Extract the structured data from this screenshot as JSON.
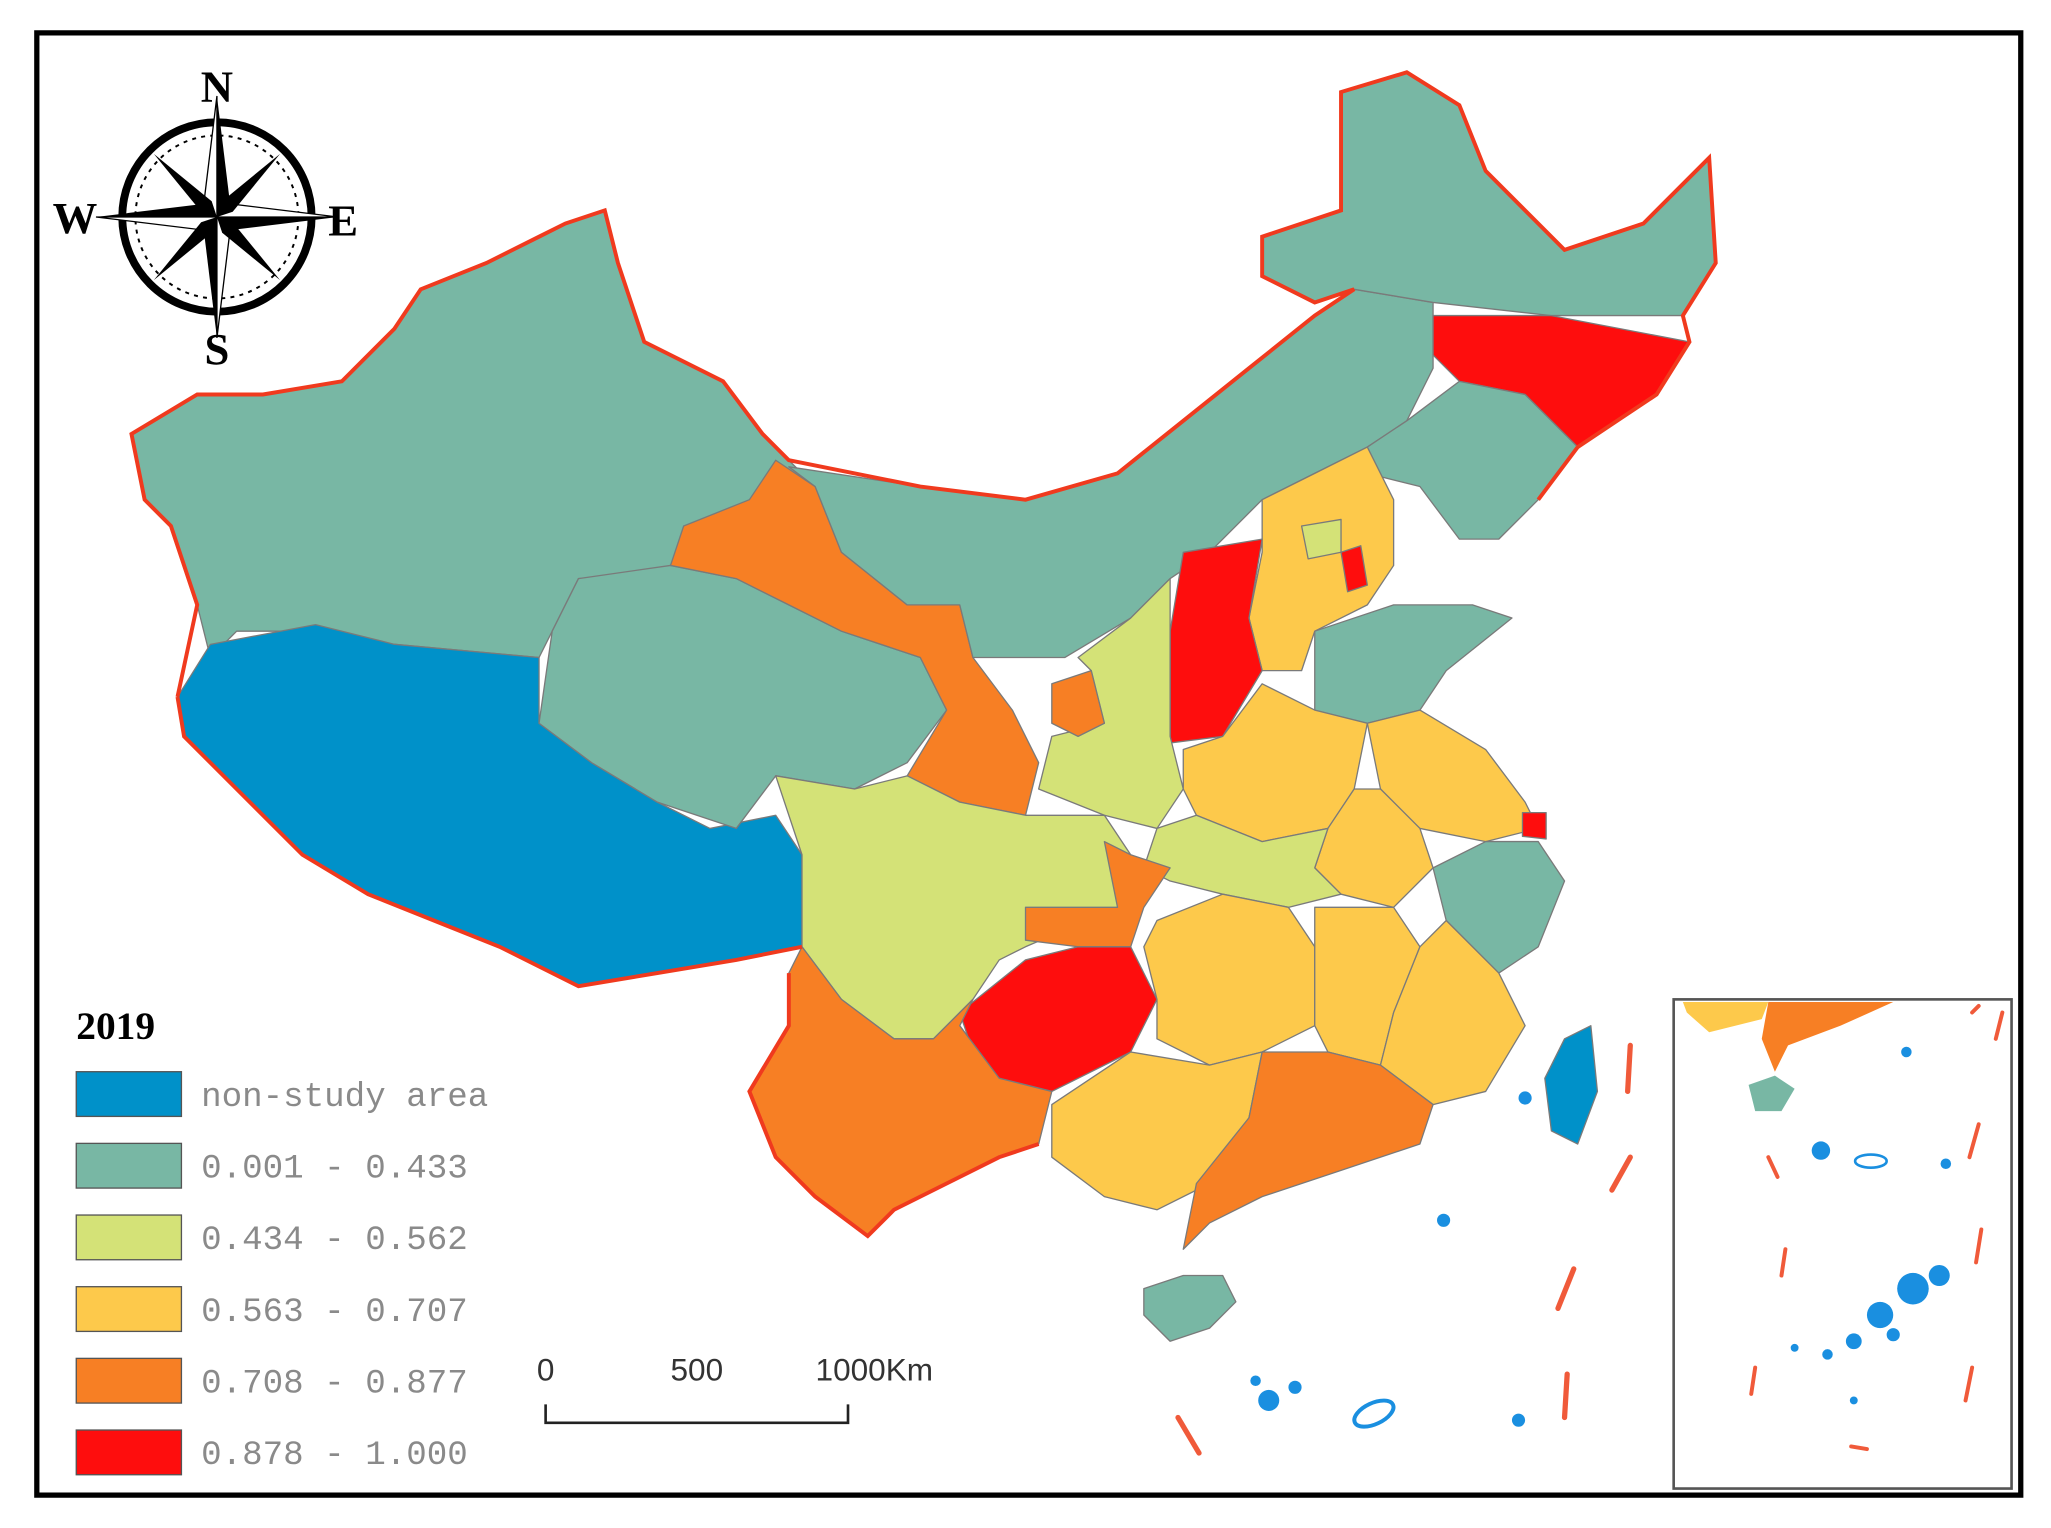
{
  "compass": {
    "north": "N",
    "south": "S",
    "west": "W",
    "east": "E"
  },
  "legend": {
    "title": "2019",
    "items": [
      {
        "label": "non-study area",
        "color": "#0091c9"
      },
      {
        "label": "0.001 - 0.433",
        "color": "#78b7a4"
      },
      {
        "label": "0.434 - 0.562",
        "color": "#d4e277"
      },
      {
        "label": "0.563 - 0.707",
        "color": "#fdc94b"
      },
      {
        "label": "0.708 - 0.877",
        "color": "#f77f24"
      },
      {
        "label": "0.878 - 1.000",
        "color": "#fe0d0d"
      }
    ]
  },
  "scale_bar": {
    "labels": [
      "0",
      "500",
      "1000Km"
    ]
  }
}
